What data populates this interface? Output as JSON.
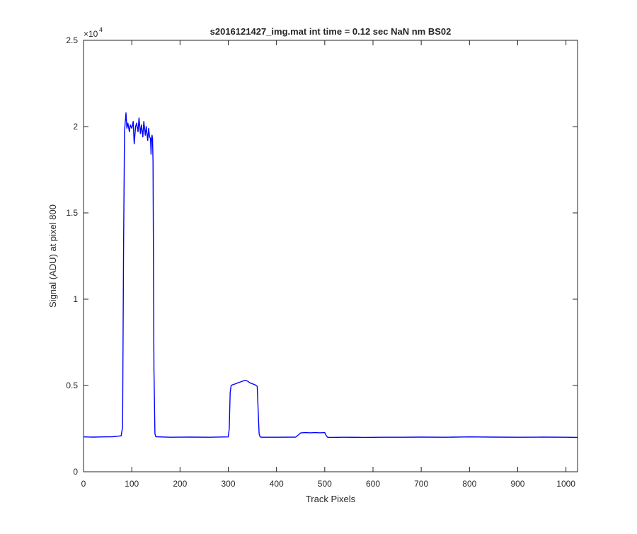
{
  "chart_data": {
    "type": "line",
    "title": "s2016121427_img.mat int time = 0.12 sec  NaN nm BS02",
    "xlabel": "Track Pixels",
    "ylabel": "Signal (ADU) at pixel 800",
    "exponent_base": "×10",
    "exponent_power": "4",
    "xlim": [
      0,
      1024
    ],
    "ylim": [
      0,
      25000
    ],
    "xticks": [
      0,
      100,
      200,
      300,
      400,
      500,
      600,
      700,
      800,
      900,
      1000
    ],
    "xtick_labels": [
      "0",
      "100",
      "200",
      "300",
      "400",
      "500",
      "600",
      "700",
      "800",
      "900",
      "1000"
    ],
    "yticks": [
      0,
      5000,
      10000,
      15000,
      20000,
      25000
    ],
    "ytick_labels": [
      "0",
      "0.5",
      "1",
      "1.5",
      "2",
      "2.5"
    ],
    "grid": false,
    "line_color": "#0000ff",
    "series": [
      {
        "x": [
          0,
          20,
          40,
          60,
          78,
          81,
          83,
          85,
          88,
          90,
          92,
          95,
          97,
          100,
          103,
          105,
          108,
          110,
          113,
          115,
          118,
          120,
          123,
          125,
          128,
          130,
          133,
          135,
          137,
          139,
          140,
          141,
          142,
          143,
          144,
          146,
          148,
          150,
          180,
          220,
          260,
          300,
          302,
          304,
          306,
          310,
          315,
          320,
          325,
          330,
          335,
          340,
          345,
          350,
          355,
          360,
          362,
          364,
          366,
          368,
          370,
          400,
          440,
          446,
          450,
          460,
          470,
          480,
          490,
          500,
          503,
          506,
          510,
          540,
          580,
          620,
          660,
          700,
          750,
          800,
          850,
          900,
          950,
          1000,
          1024
        ],
        "y": [
          2020,
          2010,
          2020,
          2030,
          2080,
          2600,
          13000,
          19700,
          20800,
          19900,
          20200,
          19700,
          20100,
          19900,
          20300,
          19000,
          20000,
          20200,
          19700,
          20500,
          19600,
          20100,
          19400,
          20300,
          19500,
          20000,
          19200,
          19900,
          19400,
          19300,
          18400,
          19300,
          19500,
          19300,
          18000,
          6000,
          2200,
          2030,
          2000,
          2010,
          2000,
          2020,
          2500,
          4600,
          5000,
          5050,
          5100,
          5150,
          5200,
          5250,
          5300,
          5250,
          5150,
          5100,
          5050,
          4950,
          3500,
          2200,
          2020,
          2010,
          2000,
          2000,
          2010,
          2150,
          2250,
          2270,
          2260,
          2270,
          2260,
          2270,
          2100,
          2000,
          1990,
          2000,
          1990,
          2000,
          2000,
          2010,
          2000,
          2020,
          2010,
          2000,
          2010,
          2000,
          1990
        ]
      }
    ]
  }
}
